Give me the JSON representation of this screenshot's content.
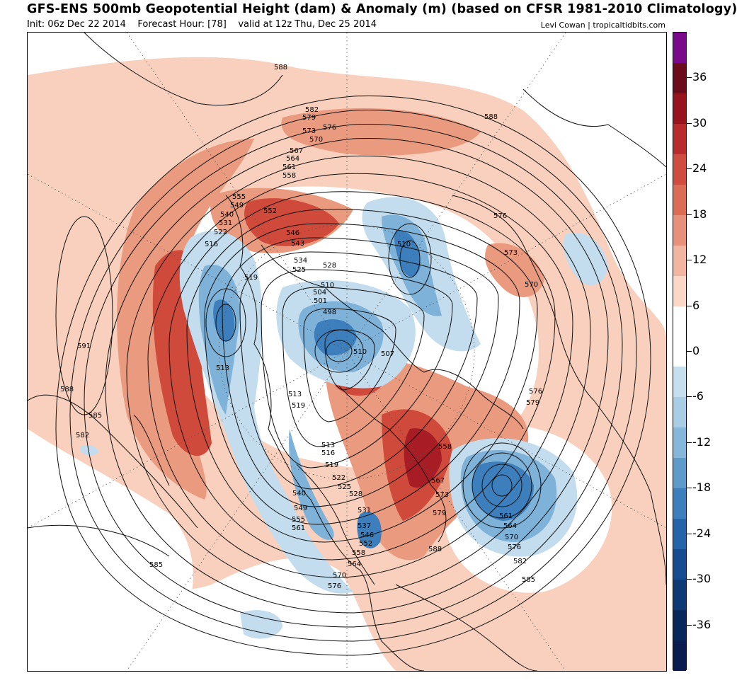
{
  "header": {
    "title": "GFS-ENS 500mb Geopotential Height (dam) & Anomaly (m) (based on CFSR 1981-2010 Climatology)",
    "init": "Init: 06z Dec 22 2014",
    "forecast_hour": "Forecast Hour: [78]",
    "valid": "valid at 12z Thu, Dec 25 2014",
    "credit": "Levi Cowan | tropicaltidbits.com"
  },
  "colorbar": {
    "ticks": [
      "36",
      "30",
      "24",
      "18",
      "12",
      "6",
      "0",
      "-6",
      "-12",
      "-18",
      "-24",
      "-30",
      "-36"
    ],
    "colors": [
      "#7b0a8a",
      "#6b0b1c",
      "#97141f",
      "#b82a2c",
      "#cf4c3f",
      "#dc6d55",
      "#e8917a",
      "#f2b59f",
      "#fad7c7",
      "#ffffff",
      "#ffffff",
      "#c6dfee",
      "#a8cde5",
      "#85b7da",
      "#5d9bcb",
      "#3c7fbc",
      "#2464a8",
      "#154d90",
      "#0c3a75",
      "#08275a",
      "#0a1b4f"
    ]
  },
  "contour_labels": [
    "588",
    "582",
    "579",
    "576",
    "573",
    "570",
    "567",
    "564",
    "561",
    "558",
    "555",
    "552",
    "549",
    "546",
    "543",
    "540",
    "534",
    "531",
    "528",
    "525",
    "522",
    "519",
    "516",
    "513",
    "510",
    "507",
    "504",
    "501",
    "498",
    "591",
    "585"
  ],
  "map_labels": {
    "h588_top": "588",
    "h582_n": "582",
    "h579_n": "579",
    "h576_n": "576",
    "h573_n": "573",
    "h570_n": "570",
    "h567_n": "567",
    "h564_n": "564",
    "h561_n": "561",
    "h558_n": "558",
    "h588_ne": "588",
    "h555_w": "555",
    "h549_w": "549",
    "h540_w": "540",
    "h531_w": "531",
    "h522_w": "522",
    "h516_w": "516",
    "h552_c": "552",
    "h546_c": "546",
    "h543_c": "543",
    "h534_c": "534",
    "h528_c": "528",
    "h525_c": "525",
    "h519_c": "519",
    "h510_eu": "510",
    "h510_c": "510",
    "h504_c": "504",
    "h501_c": "501",
    "h498_c": "498",
    "h510_c2": "510",
    "h507_c": "507",
    "h576_e": "576",
    "h573_e": "573",
    "h570_e": "570",
    "h591_w": "591",
    "h513_w": "513",
    "h588_w": "588",
    "h585_w": "585",
    "h582_w": "582",
    "h513_c": "513",
    "h519_c2": "519",
    "h513_c3": "513",
    "h516_c3": "516",
    "h519_c3": "519",
    "h522_s": "522",
    "h525_s": "525",
    "h528_s": "528",
    "h540_s": "540",
    "h549_s": "549",
    "h555_s": "555",
    "h561_s": "561",
    "h531_s": "531",
    "h537_s": "537",
    "h546_s": "546",
    "h552_s": "552",
    "h558_s": "558",
    "h564_s": "564",
    "h570_s": "570",
    "h576_s": "576",
    "h558_a": "558",
    "h567_a": "567",
    "h573_a": "573",
    "h579_a": "579",
    "h588_a": "588",
    "h576_at": "576",
    "h579_at": "579",
    "h561_e": "561",
    "h564_e": "564",
    "h570_e2": "570",
    "h576_e2": "576",
    "h582_e": "582",
    "h585_e": "585",
    "h585_sw": "585"
  }
}
